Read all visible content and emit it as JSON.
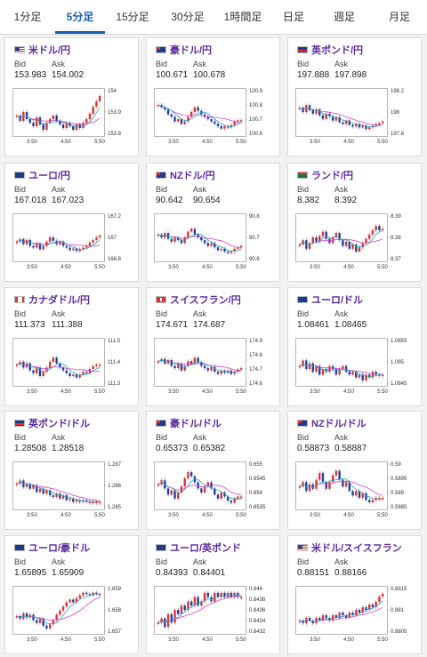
{
  "tabs": [
    {
      "label": "1分足",
      "active": false
    },
    {
      "label": "5分足",
      "active": true
    },
    {
      "label": "15分足",
      "active": false
    },
    {
      "label": "30分足",
      "active": false
    },
    {
      "label": "1時間足",
      "active": false
    },
    {
      "label": "日足",
      "active": false
    },
    {
      "label": "週足",
      "active": false
    },
    {
      "label": "月足",
      "active": false
    }
  ],
  "labels": {
    "bid": "Bid",
    "ask": "Ask"
  },
  "colors": {
    "pair": "#5b2aa0",
    "up": "#e03030",
    "down": "#1f3fa0",
    "ma_magenta": "#d63fd6",
    "ma_teal": "#2aa6b8"
  },
  "cards": [
    {
      "pair": "米ドル/円",
      "flag": "us",
      "bid": "153.983",
      "ask": "154.002",
      "chart_data": {
        "type": "candlestick",
        "x_ticks": [
          "3:50",
          "4:50",
          "5:50"
        ],
        "y_ticks": [
          "154",
          "153.9",
          "153.8"
        ],
        "ylim": [
          153.78,
          154.02
        ],
        "closes": [
          153.88,
          153.85,
          153.9,
          153.86,
          153.84,
          153.82,
          153.87,
          153.83,
          153.8,
          153.84,
          153.86,
          153.88,
          153.85,
          153.83,
          153.81,
          153.84,
          153.82,
          153.8,
          153.83,
          153.81,
          153.84,
          153.86,
          153.89,
          153.93,
          153.96,
          153.99
        ]
      }
    },
    {
      "pair": "豪ドル/円",
      "flag": "au",
      "bid": "100.671",
      "ask": "100.678",
      "chart_data": {
        "type": "candlestick",
        "x_ticks": [
          "3:50",
          "4:50",
          "5:50"
        ],
        "y_ticks": [
          "100.9",
          "100.8",
          "100.7",
          "100.6"
        ],
        "ylim": [
          100.56,
          100.92
        ],
        "closes": [
          100.8,
          100.78,
          100.76,
          100.72,
          100.7,
          100.66,
          100.68,
          100.64,
          100.66,
          100.7,
          100.74,
          100.78,
          100.75,
          100.72,
          100.7,
          100.68,
          100.66,
          100.64,
          100.62,
          100.6,
          100.62,
          100.61,
          100.63,
          100.66,
          100.67,
          100.67
        ]
      }
    },
    {
      "pair": "英ポンド/円",
      "flag": "gb",
      "bid": "197.888",
      "ask": "197.898",
      "chart_data": {
        "type": "candlestick",
        "x_ticks": [
          "3:50",
          "4:50",
          "5:50"
        ],
        "y_ticks": [
          "198.2",
          "198",
          "197.8"
        ],
        "ylim": [
          197.75,
          198.25
        ],
        "closes": [
          198.05,
          198.0,
          198.08,
          198.02,
          197.98,
          198.03,
          197.96,
          197.92,
          197.98,
          197.95,
          197.9,
          197.94,
          197.88,
          197.86,
          197.9,
          197.85,
          197.83,
          197.86,
          197.82,
          197.84,
          197.8,
          197.82,
          197.84,
          197.86,
          197.87,
          197.89
        ]
      }
    },
    {
      "pair": "ユーロ/円",
      "flag": "eu",
      "bid": "167.018",
      "ask": "167.023",
      "chart_data": {
        "type": "candlestick",
        "x_ticks": [
          "3:50",
          "4:50",
          "5:50"
        ],
        "y_ticks": [
          "167.2",
          "167",
          "166.8"
        ],
        "ylim": [
          166.75,
          167.25
        ],
        "closes": [
          166.95,
          166.98,
          166.92,
          166.97,
          166.9,
          166.88,
          166.93,
          166.86,
          166.9,
          166.95,
          167.0,
          166.96,
          166.92,
          166.95,
          166.9,
          166.88,
          166.85,
          166.87,
          166.84,
          166.86,
          166.88,
          166.9,
          166.94,
          166.97,
          167.0,
          167.02
        ]
      }
    },
    {
      "pair": "NZドル/円",
      "flag": "nz",
      "bid": "90.642",
      "ask": "90.654",
      "chart_data": {
        "type": "candlestick",
        "x_ticks": [
          "3:50",
          "4:50",
          "5:50"
        ],
        "y_ticks": [
          "90.8",
          "90.7",
          "90.6"
        ],
        "ylim": [
          90.55,
          90.85
        ],
        "closes": [
          90.72,
          90.7,
          90.73,
          90.69,
          90.67,
          90.7,
          90.68,
          90.66,
          90.7,
          90.74,
          90.76,
          90.72,
          90.7,
          90.68,
          90.66,
          90.64,
          90.66,
          90.63,
          90.61,
          90.62,
          90.6,
          90.59,
          90.6,
          90.62,
          90.63,
          90.64
        ]
      }
    },
    {
      "pair": "ランド/円",
      "flag": "za",
      "bid": "8.382",
      "ask": "8.392",
      "chart_data": {
        "type": "candlestick",
        "x_ticks": [
          "3:50",
          "4:50",
          "5:50"
        ],
        "y_ticks": [
          "8.39",
          "8.38",
          "8.37"
        ],
        "ylim": [
          8.365,
          8.395
        ],
        "closes": [
          8.375,
          8.378,
          8.372,
          8.376,
          8.38,
          8.377,
          8.381,
          8.384,
          8.379,
          8.376,
          8.38,
          8.383,
          8.378,
          8.374,
          8.377,
          8.372,
          8.375,
          8.37,
          8.373,
          8.376,
          8.379,
          8.382,
          8.385,
          8.388,
          8.385,
          8.386
        ]
      }
    },
    {
      "pair": "カナダドル/円",
      "flag": "ca",
      "bid": "111.373",
      "ask": "111.388",
      "chart_data": {
        "type": "candlestick",
        "x_ticks": [
          "3:50",
          "4:50",
          "5:50"
        ],
        "y_ticks": [
          "111.5",
          "111.4",
          "111.3"
        ],
        "ylim": [
          111.25,
          111.55
        ],
        "closes": [
          111.38,
          111.4,
          111.36,
          111.39,
          111.34,
          111.32,
          111.36,
          111.3,
          111.33,
          111.36,
          111.4,
          111.43,
          111.39,
          111.36,
          111.34,
          111.32,
          111.3,
          111.31,
          111.29,
          111.31,
          111.33,
          111.32,
          111.35,
          111.37,
          111.38,
          111.38
        ]
      }
    },
    {
      "pair": "スイスフラン/円",
      "flag": "ch",
      "bid": "174.671",
      "ask": "174.687",
      "chart_data": {
        "type": "candlestick",
        "x_ticks": [
          "3:50",
          "4:50",
          "5:50"
        ],
        "y_ticks": [
          "174.9",
          "174.8",
          "174.7",
          "174.6"
        ],
        "ylim": [
          174.55,
          174.92
        ],
        "closes": [
          174.74,
          174.76,
          174.72,
          174.75,
          174.7,
          174.68,
          174.72,
          174.66,
          174.7,
          174.74,
          174.72,
          174.77,
          174.73,
          174.7,
          174.68,
          174.66,
          174.69,
          174.65,
          174.63,
          174.66,
          174.64,
          174.66,
          174.63,
          174.65,
          174.67,
          174.68
        ]
      }
    },
    {
      "pair": "ユーロ/ドル",
      "flag": "eu-us",
      "bid": "1.08461",
      "ask": "1.08465",
      "chart_data": {
        "type": "candlestick",
        "x_ticks": [
          "3:50",
          "4:50",
          "5:50"
        ],
        "y_ticks": [
          "1.0855",
          "1.085",
          "1.0845"
        ],
        "ylim": [
          1.0843,
          1.0858
        ],
        "closes": [
          1.0849,
          1.0851,
          1.0848,
          1.085,
          1.0847,
          1.0849,
          1.0846,
          1.0848,
          1.0847,
          1.0849,
          1.0848,
          1.0846,
          1.0848,
          1.0849,
          1.0847,
          1.0846,
          1.0847,
          1.0845,
          1.0846,
          1.0844,
          1.0846,
          1.0845,
          1.0847,
          1.0846,
          1.0846,
          1.0846
        ]
      }
    },
    {
      "pair": "英ポンド/ドル",
      "flag": "gb-us",
      "bid": "1.28508",
      "ask": "1.28518",
      "chart_data": {
        "type": "candlestick",
        "x_ticks": [
          "3:50",
          "4:50",
          "5:50"
        ],
        "y_ticks": [
          "1.287",
          "1.286",
          "1.285"
        ],
        "ylim": [
          1.2848,
          1.2874
        ],
        "closes": [
          1.2862,
          1.2864,
          1.286,
          1.2862,
          1.2859,
          1.2861,
          1.2857,
          1.2859,
          1.2856,
          1.2858,
          1.2855,
          1.2854,
          1.2856,
          1.2853,
          1.2855,
          1.2852,
          1.2853,
          1.2851,
          1.2852,
          1.2851,
          1.2852,
          1.2851,
          1.2851,
          1.2851,
          1.2851,
          1.2851
        ]
      }
    },
    {
      "pair": "豪ドル/ドル",
      "flag": "au-us",
      "bid": "0.65373",
      "ask": "0.65382",
      "chart_data": {
        "type": "candlestick",
        "x_ticks": [
          "3:50",
          "4:50",
          "5:50"
        ],
        "y_ticks": [
          "0.655",
          "0.6545",
          "0.654",
          "0.6535"
        ],
        "ylim": [
          0.6532,
          0.6553
        ],
        "closes": [
          0.6543,
          0.6545,
          0.6541,
          0.6538,
          0.654,
          0.6536,
          0.6539,
          0.6542,
          0.6546,
          0.6549,
          0.6547,
          0.6544,
          0.6541,
          0.6539,
          0.6542,
          0.6544,
          0.6541,
          0.6538,
          0.6536,
          0.6539,
          0.6537,
          0.6535,
          0.6534,
          0.6536,
          0.6537,
          0.6537
        ]
      }
    },
    {
      "pair": "NZドル/ドル",
      "flag": "nz-us",
      "bid": "0.58873",
      "ask": "0.58887",
      "chart_data": {
        "type": "candlestick",
        "x_ticks": [
          "3:50",
          "4:50",
          "5:50"
        ],
        "y_ticks": [
          "0.59",
          "0.5895",
          "0.589",
          "0.5885"
        ],
        "ylim": [
          0.5883,
          0.5902
        ],
        "closes": [
          0.5892,
          0.5894,
          0.589,
          0.5893,
          0.5891,
          0.5895,
          0.5898,
          0.5894,
          0.5891,
          0.5894,
          0.5897,
          0.5899,
          0.5895,
          0.5892,
          0.5894,
          0.589,
          0.5888,
          0.589,
          0.5887,
          0.5889,
          0.5886,
          0.5885,
          0.5886,
          0.5887,
          0.5887,
          0.5887
        ]
      }
    },
    {
      "pair": "ユーロ/豪ドル",
      "flag": "eu-au",
      "bid": "1.65895",
      "ask": "1.65909",
      "chart_data": {
        "type": "candlestick",
        "x_ticks": [
          "3:50",
          "4:50",
          "5:50"
        ],
        "y_ticks": [
          "1.659",
          "1.658",
          "1.657"
        ],
        "ylim": [
          1.6563,
          1.6594
        ],
        "closes": [
          1.6574,
          1.6572,
          1.6576,
          1.6573,
          1.6575,
          1.6571,
          1.6569,
          1.6572,
          1.6567,
          1.6565,
          1.6568,
          1.6571,
          1.6575,
          1.6578,
          1.6581,
          1.6584,
          1.6586,
          1.6584,
          1.6587,
          1.6589,
          1.6591,
          1.659,
          1.6589,
          1.6591,
          1.659,
          1.659
        ]
      }
    },
    {
      "pair": "ユーロ/英ポンド",
      "flag": "eu-gb",
      "bid": "0.84393",
      "ask": "0.84401",
      "chart_data": {
        "type": "candlestick",
        "x_ticks": [
          "3:50",
          "4:50",
          "5:50"
        ],
        "y_ticks": [
          "0.844",
          "0.8438",
          "0.8436",
          "0.8434",
          "0.8432"
        ],
        "ylim": [
          0.8431,
          0.8441
        ],
        "closes": [
          0.8433,
          0.8434,
          0.8432,
          0.8435,
          0.8433,
          0.8436,
          0.8435,
          0.8437,
          0.8436,
          0.8438,
          0.8437,
          0.8439,
          0.8437,
          0.8438,
          0.844,
          0.8439,
          0.8438,
          0.844,
          0.8439,
          0.844,
          0.8439,
          0.844,
          0.8439,
          0.844,
          0.8439,
          0.8439
        ]
      }
    },
    {
      "pair": "米ドル/スイスフラン",
      "flag": "us-ch",
      "bid": "0.88151",
      "ask": "0.88166",
      "chart_data": {
        "type": "candlestick",
        "x_ticks": [
          "3:50",
          "4:50",
          "5:50"
        ],
        "y_ticks": [
          "0.8815",
          "0.881",
          "0.8805"
        ],
        "ylim": [
          0.8802,
          0.8818
        ],
        "closes": [
          0.8806,
          0.8805,
          0.8807,
          0.8806,
          0.8805,
          0.8807,
          0.8806,
          0.8808,
          0.8807,
          0.8806,
          0.8808,
          0.8807,
          0.8809,
          0.8808,
          0.8807,
          0.8809,
          0.8808,
          0.881,
          0.8809,
          0.8811,
          0.881,
          0.8812,
          0.8811,
          0.8813,
          0.8815,
          0.8816
        ]
      }
    }
  ]
}
